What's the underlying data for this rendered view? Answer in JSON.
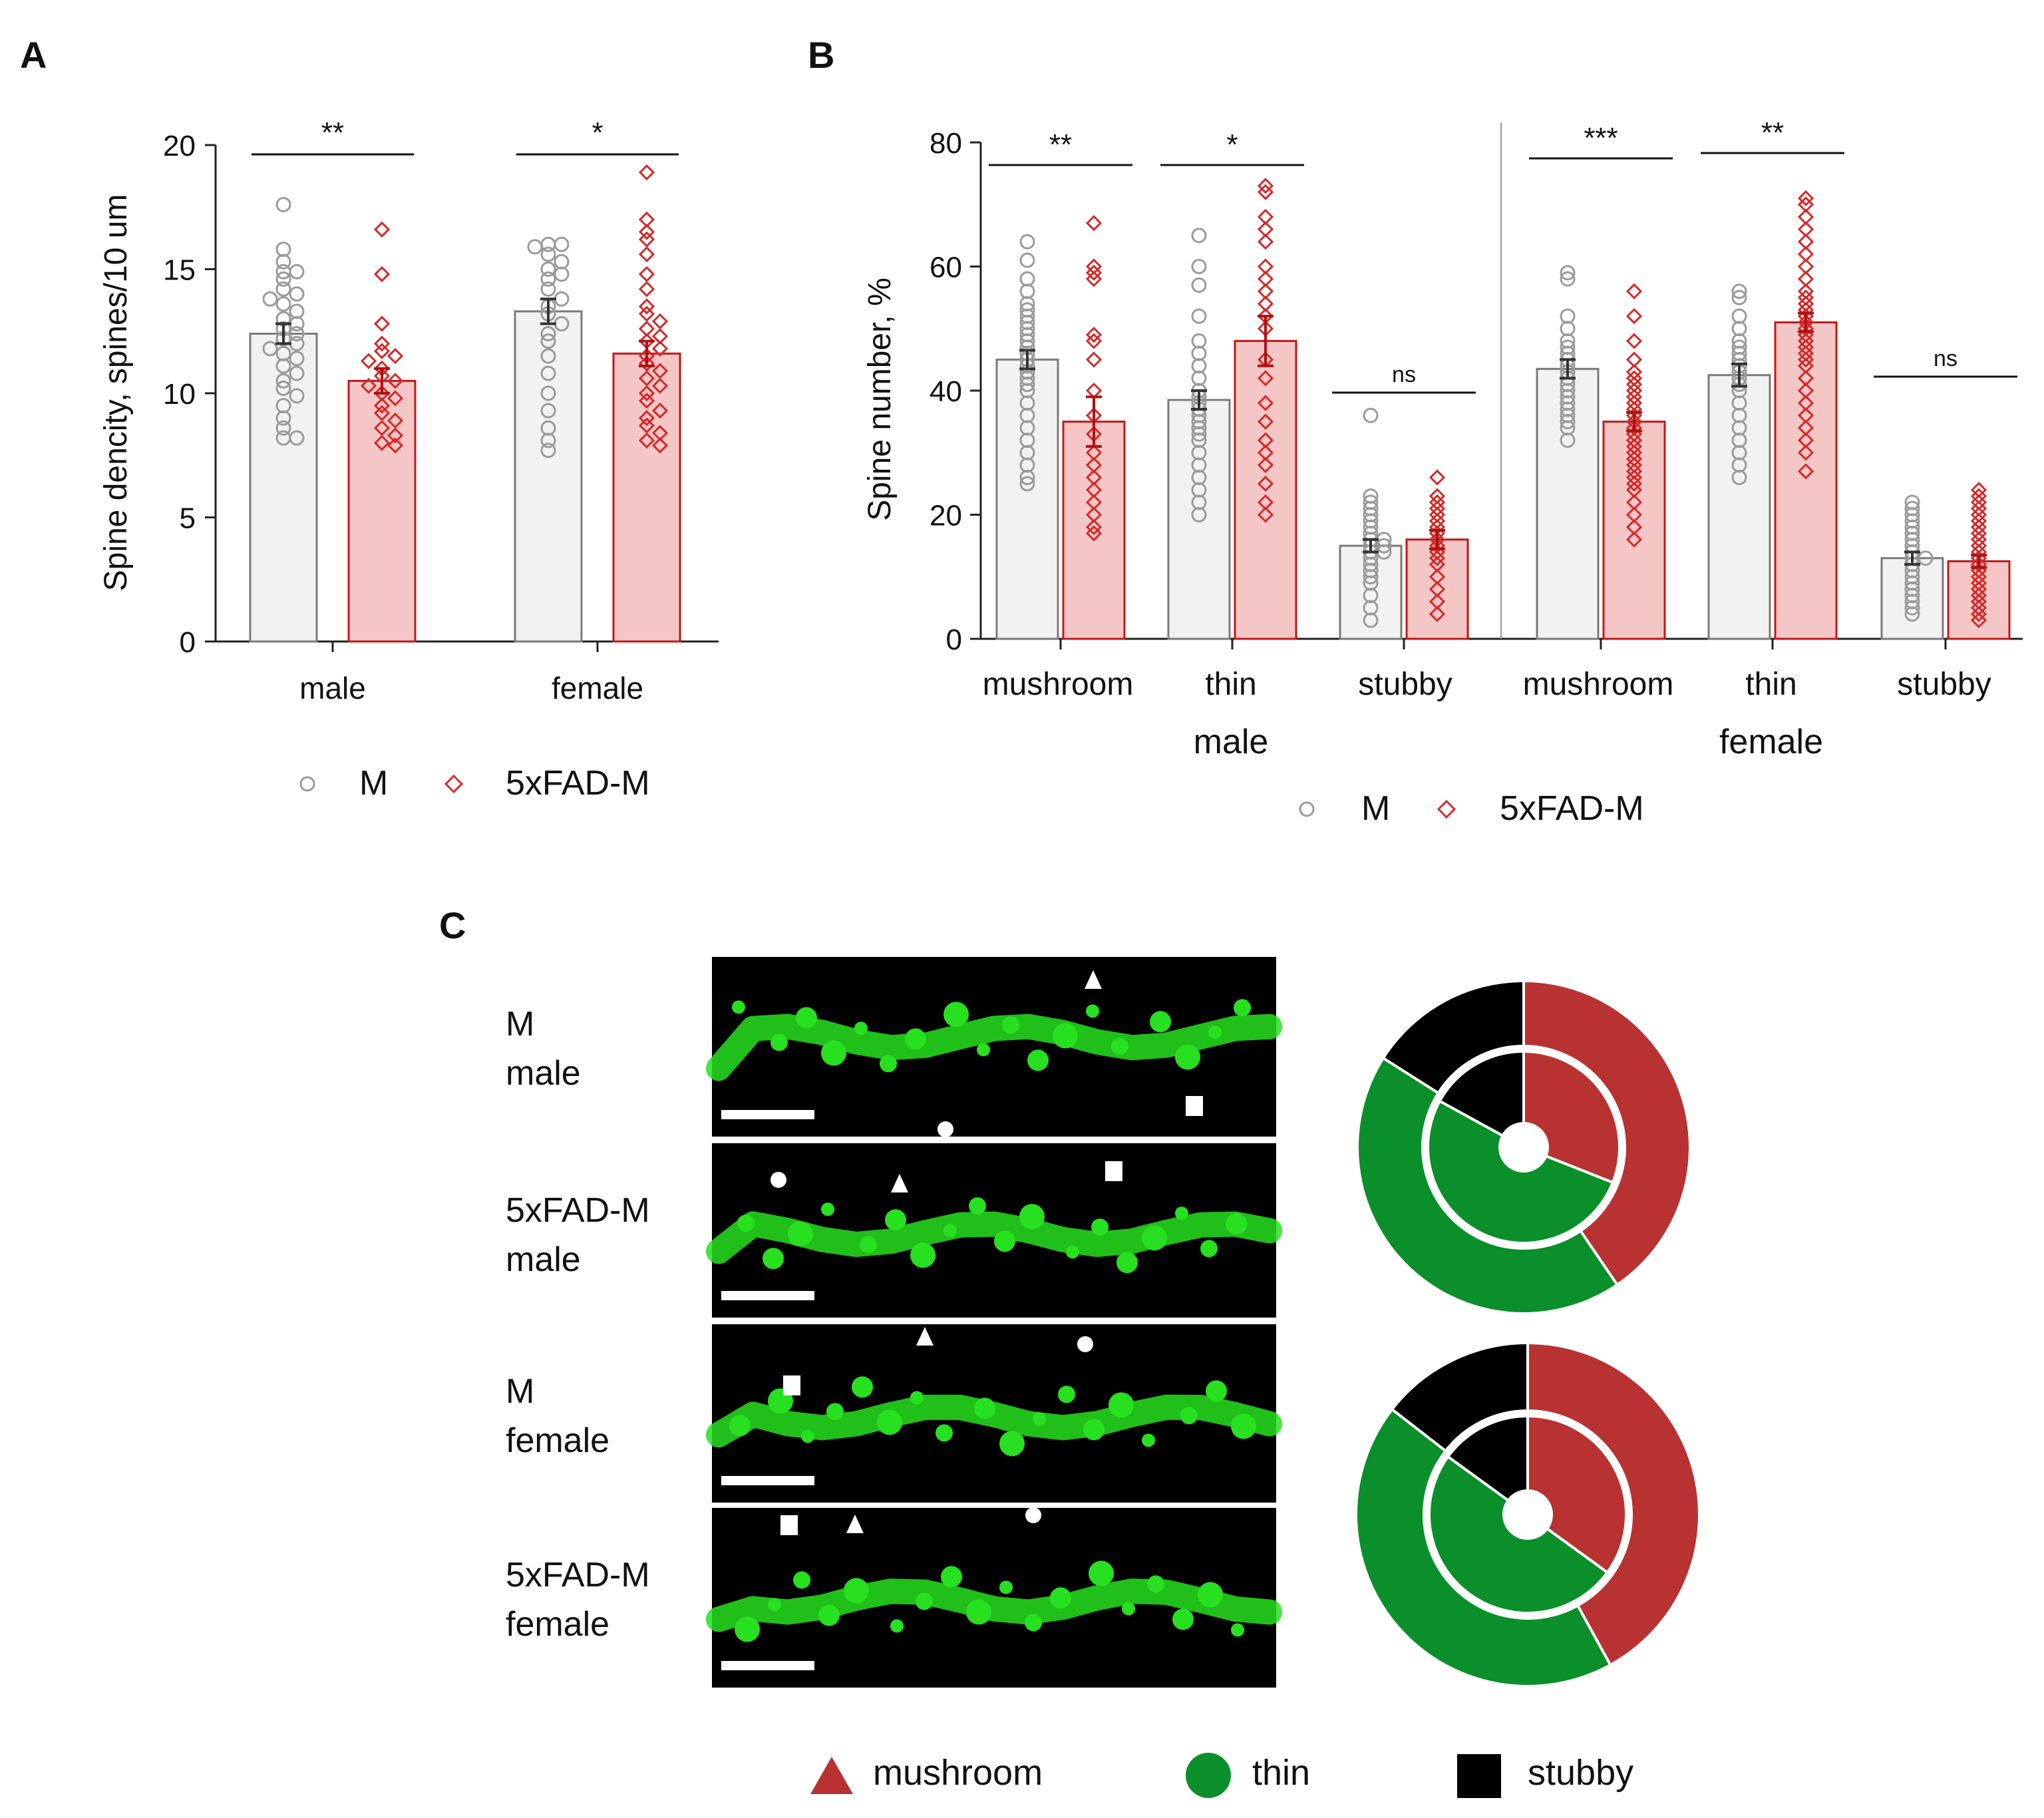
{
  "colors": {
    "control": "#9a9a9a",
    "fad": "#d42a2a",
    "control_bar_fill": "#f2f2f2",
    "fad_bar_fill": "#f5c6c6",
    "mushroom": "#b83232",
    "thin": "#0a8f2a",
    "stubby": "#000000",
    "micrograph_bg": "#000000",
    "micrograph_fg": "#27e01f"
  },
  "legend_groups": {
    "control": "M",
    "fad": "5xFAD-M"
  },
  "chart_data": [
    {
      "panel": "A",
      "type": "bar",
      "title": "",
      "ylabel": "Spine dencity, spines/10 um",
      "ylim": [
        0,
        20
      ],
      "yticks": [
        "0",
        "5",
        "10",
        "15",
        "20"
      ],
      "categories": [
        "male",
        "female"
      ],
      "series": [
        {
          "name": "M",
          "values": [
            12.4,
            13.3
          ],
          "errors": [
            0.4,
            0.5
          ]
        },
        {
          "name": "5xFAD-M",
          "values": [
            10.5,
            11.6
          ],
          "errors": [
            0.5,
            0.5
          ]
        }
      ],
      "significance": [
        "**",
        "*"
      ],
      "points": {
        "M": [
          [
            17.6,
            15.8,
            15.3,
            14.9,
            14.9,
            14.6,
            14.2,
            14.0,
            13.8,
            13.6,
            13.3,
            13.0,
            12.8,
            12.6,
            12.4,
            12.2,
            12.0,
            11.8,
            11.6,
            11.4,
            11.1,
            10.8,
            10.5,
            10.2,
            9.9,
            9.5,
            9.0,
            8.6,
            8.2,
            8.2
          ],
          [
            16.0,
            16.0,
            15.9,
            15.6,
            15.3,
            15.0,
            14.8,
            14.6,
            14.2,
            13.8,
            13.5,
            13.2,
            12.8,
            12.4,
            12.1,
            11.5,
            10.8,
            10.0,
            9.3,
            8.6,
            8.1,
            7.7
          ]
        ],
        "5xFAD-M": [
          [
            16.6,
            14.8,
            12.8,
            12.0,
            11.7,
            11.5,
            11.3,
            11.0,
            10.7,
            10.5,
            10.3,
            10.0,
            9.8,
            9.5,
            9.2,
            8.9,
            8.6,
            8.3,
            8.0,
            7.9
          ],
          [
            18.9,
            17.0,
            16.5,
            16.2,
            15.6,
            14.8,
            14.2,
            13.5,
            13.2,
            12.9,
            12.6,
            12.3,
            12.1,
            11.8,
            11.5,
            11.2,
            10.9,
            10.6,
            10.3,
            10.0,
            9.7,
            9.3,
            9.0,
            8.7,
            8.4,
            8.1,
            7.9
          ]
        ]
      }
    },
    {
      "panel": "B",
      "type": "bar",
      "title": "",
      "ylabel": "Spine number, %",
      "ylim": [
        0,
        80
      ],
      "yticks": [
        "0",
        "20",
        "40",
        "60",
        "80"
      ],
      "categories": [
        "mushroom",
        "thin",
        "stubby",
        "mushroom",
        "thin",
        "stubby"
      ],
      "sex_groups": [
        "male",
        "female"
      ],
      "series": [
        {
          "name": "M",
          "values": [
            45,
            38.5,
            15,
            43.5,
            42.5,
            13
          ],
          "errors": [
            1.5,
            1.5,
            1.0,
            1.5,
            1.8,
            1.0
          ]
        },
        {
          "name": "5xFAD-M",
          "values": [
            35,
            48,
            16,
            35,
            51,
            12.5
          ],
          "errors": [
            4,
            4,
            1.5,
            1.5,
            1.5,
            1.0
          ]
        }
      ],
      "significance": [
        "**",
        "*",
        "ns",
        "***",
        "**",
        "ns"
      ],
      "points": {
        "M": [
          [
            64,
            61,
            58,
            56,
            54,
            53,
            52,
            51,
            50,
            49,
            48,
            47,
            46,
            45,
            44,
            43,
            42,
            41,
            40,
            38,
            36,
            34,
            32,
            30,
            28,
            26,
            25
          ],
          [
            65,
            60,
            57,
            52,
            48,
            46,
            44,
            42,
            40,
            39,
            38,
            37,
            36,
            35,
            34,
            33,
            32,
            30,
            28,
            26,
            24,
            22,
            20
          ],
          [
            36,
            23,
            22,
            21,
            20,
            19,
            18,
            17,
            16,
            16,
            15,
            15,
            14,
            14,
            13,
            12,
            11,
            10,
            9,
            7,
            5,
            3
          ],
          [
            59,
            58,
            52,
            50,
            48,
            47,
            46,
            45,
            44,
            43,
            42,
            41,
            40,
            39,
            38,
            37,
            36,
            35,
            34,
            32
          ],
          [
            56,
            55,
            52,
            50,
            48,
            47,
            46,
            45,
            44,
            43,
            42,
            41,
            40,
            38,
            36,
            34,
            32,
            30,
            28,
            26
          ],
          [
            22,
            21,
            20,
            19,
            18,
            17,
            16,
            15,
            14,
            13,
            13,
            12,
            11,
            10,
            9,
            8,
            7,
            6,
            5,
            4
          ]
        ],
        "5xFAD-M": [
          [
            67,
            60,
            59,
            58,
            49,
            48,
            45,
            40,
            36,
            33,
            30,
            28,
            26,
            24,
            22,
            20,
            18,
            17
          ],
          [
            73,
            72,
            68,
            66,
            64,
            60,
            58,
            56,
            54,
            52,
            50,
            45,
            42,
            38,
            35,
            32,
            30,
            28,
            25,
            22,
            20
          ],
          [
            26,
            23,
            22,
            21,
            20,
            19,
            18,
            17,
            16,
            15,
            14,
            13,
            12,
            10,
            8,
            6,
            4
          ],
          [
            56,
            52,
            48,
            45,
            43,
            42,
            41,
            40,
            39,
            38,
            37,
            36,
            35,
            34,
            33,
            32,
            31,
            30,
            29,
            28,
            27,
            26,
            25,
            24,
            22,
            20,
            18,
            16
          ],
          [
            71,
            70,
            68,
            66,
            64,
            62,
            60,
            58,
            56,
            55,
            54,
            53,
            52,
            51,
            50,
            49,
            48,
            47,
            46,
            45,
            44,
            42,
            40,
            38,
            36,
            34,
            32,
            30,
            27
          ],
          [
            24,
            23,
            22,
            21,
            20,
            19,
            18,
            17,
            16,
            15,
            14,
            13,
            12,
            11,
            10,
            9,
            8,
            7,
            6,
            5,
            4,
            3
          ]
        ]
      }
    },
    {
      "panel": "C",
      "type": "pie",
      "title": "",
      "rows": [
        {
          "group": "M",
          "sex": "male",
          "markers": [
            "triangle",
            "square",
            "circle"
          ]
        },
        {
          "group": "5xFAD-M",
          "sex": "male",
          "markers": [
            "circle",
            "triangle",
            "square"
          ]
        },
        {
          "group": "M",
          "sex": "female",
          "markers": [
            "triangle",
            "circle",
            "square"
          ]
        },
        {
          "group": "5xFAD-M",
          "sex": "female",
          "markers": [
            "square",
            "triangle",
            "circle"
          ]
        }
      ],
      "donuts": [
        {
          "sex": "male",
          "outer": {
            "ring": "5xFAD-M",
            "slices": [
              {
                "label": "mushroom",
                "value": 40.5
              },
              {
                "label": "thin",
                "value": 43.5
              },
              {
                "label": "stubby",
                "value": 16
              }
            ]
          },
          "inner": {
            "ring": "M",
            "slices": [
              {
                "label": "mushroom",
                "value": 31
              },
              {
                "label": "thin",
                "value": 52
              },
              {
                "label": "stubby",
                "value": 17
              }
            ]
          }
        },
        {
          "sex": "female",
          "outer": {
            "ring": "5xFAD-M",
            "slices": [
              {
                "label": "mushroom",
                "value": 42
              },
              {
                "label": "thin",
                "value": 43.5
              },
              {
                "label": "stubby",
                "value": 14.5
              }
            ]
          },
          "inner": {
            "ring": "M",
            "slices": [
              {
                "label": "mushroom",
                "value": 35
              },
              {
                "label": "thin",
                "value": 50
              },
              {
                "label": "stubby",
                "value": 15
              }
            ]
          }
        }
      ],
      "legend": [
        "mushroom",
        "thin",
        "stubby"
      ]
    }
  ],
  "panel_labels": {
    "a": "A",
    "b": "B",
    "c": "C"
  }
}
